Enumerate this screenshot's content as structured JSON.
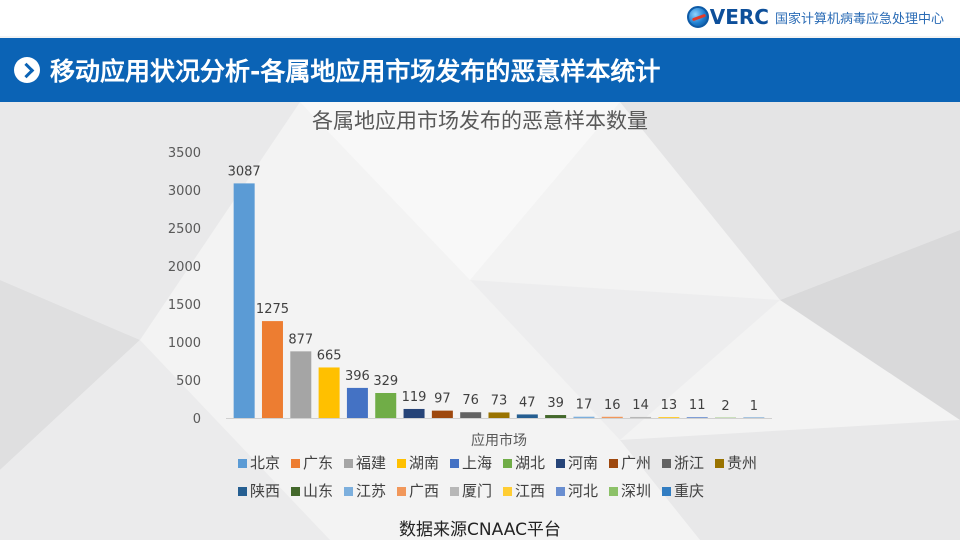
{
  "header": {
    "logo_text": "VERC",
    "org_name": "国家计算机病毒应急处理中心",
    "slide_title": "移动应用状况分析-各属地应用市场发布的恶意样本统计"
  },
  "footer": {
    "source": "数据来源CNAAC平台"
  },
  "colors": {
    "banner": "#0b63b5",
    "series": {
      "北京": "#5b9bd5",
      "广东": "#ed7d31",
      "福建": "#a5a5a5",
      "湖南": "#ffc000",
      "上海": "#4472c4",
      "湖北": "#70ad47",
      "河南": "#264478",
      "广州": "#9e480e",
      "浙江": "#636363",
      "贵州": "#997300",
      "陕西": "#255e91",
      "山东": "#43682b",
      "江苏": "#7cafdd",
      "广西": "#f1975a",
      "厦门": "#b7b7b7",
      "江西": "#ffcd33",
      "河北": "#698ed0",
      "深圳": "#8cc168",
      "重庆": "#327dc2"
    }
  },
  "chart_data": {
    "type": "bar",
    "title": "各属地应用市场发布的恶意样本数量",
    "xlabel": "应用市场",
    "ylabel": "",
    "ylim": [
      0,
      3500
    ],
    "yticks": [
      0,
      500,
      1000,
      1500,
      2000,
      2500,
      3000,
      3500
    ],
    "grid": false,
    "legend_position": "bottom",
    "series": [
      {
        "name": "北京",
        "value": 3087
      },
      {
        "name": "广东",
        "value": 1275
      },
      {
        "name": "福建",
        "value": 877
      },
      {
        "name": "湖南",
        "value": 665
      },
      {
        "name": "上海",
        "value": 396
      },
      {
        "name": "湖北",
        "value": 329
      },
      {
        "name": "河南",
        "value": 119
      },
      {
        "name": "广州",
        "value": 97
      },
      {
        "name": "浙江",
        "value": 76
      },
      {
        "name": "贵州",
        "value": 73
      },
      {
        "name": "陕西",
        "value": 47
      },
      {
        "name": "山东",
        "value": 39
      },
      {
        "name": "江苏",
        "value": 17
      },
      {
        "name": "广西",
        "value": 16
      },
      {
        "name": "厦门",
        "value": 14
      },
      {
        "name": "江西",
        "value": 13
      },
      {
        "name": "河北",
        "value": 11
      },
      {
        "name": "深圳",
        "value": 2
      },
      {
        "name": "重庆",
        "value": 1
      }
    ]
  }
}
